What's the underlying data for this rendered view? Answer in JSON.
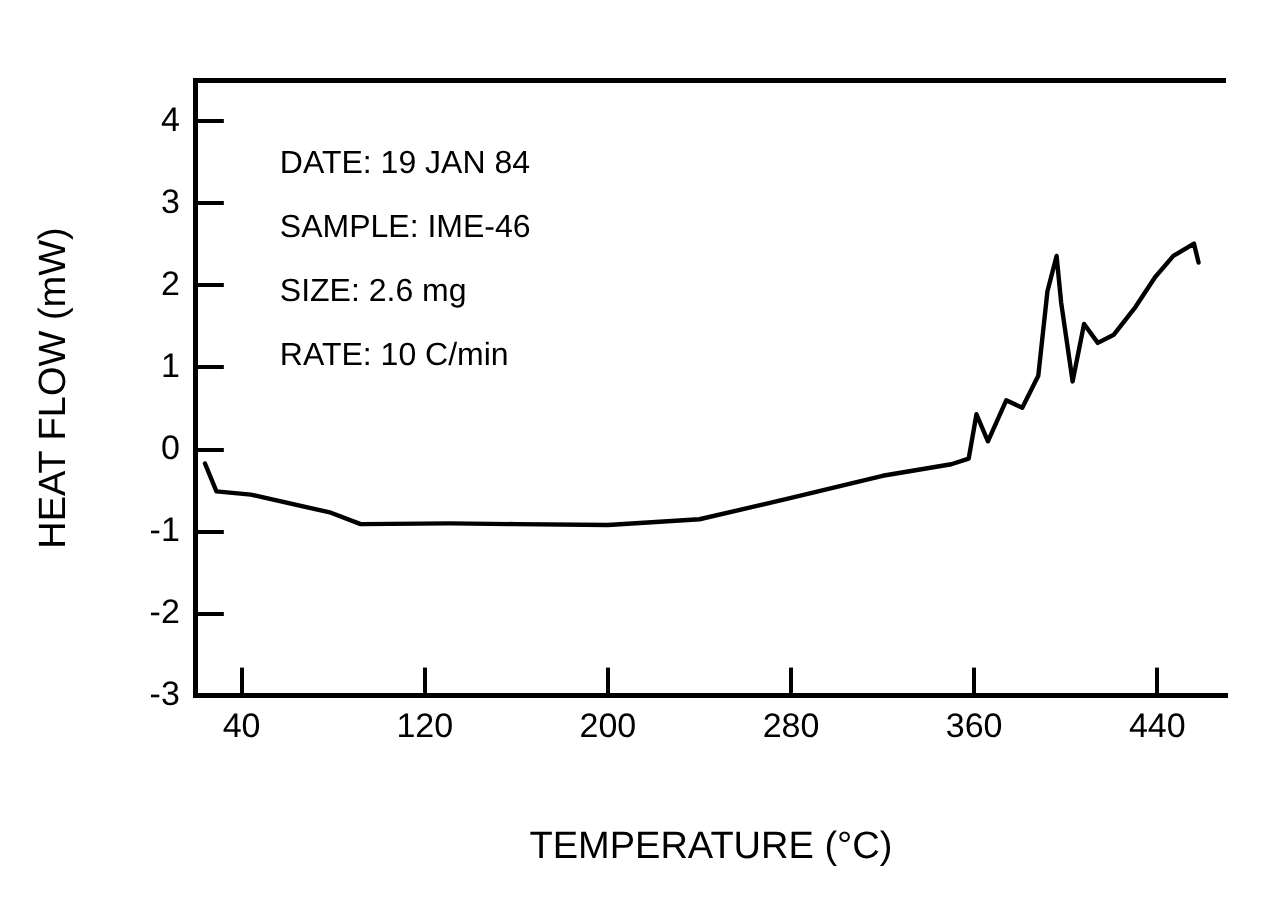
{
  "chart_data": {
    "type": "line",
    "xlabel": "TEMPERATURE (°C)",
    "ylabel": "HEAT FLOW (mW)",
    "annotations": [
      "DATE: 19 JAN 84",
      "SAMPLE: IME-46",
      "SIZE: 2.6 mg",
      "RATE: 10 C/min"
    ],
    "x": [
      24,
      29,
      44,
      79,
      92,
      131,
      160,
      200,
      240,
      280,
      320,
      350,
      357.6,
      361,
      366,
      374,
      381,
      388,
      392,
      396,
      398,
      403,
      408,
      414,
      421,
      430,
      439,
      447,
      456,
      458
    ],
    "series": [
      {
        "color": "#000000",
        "values": [
          -0.17,
          -0.51,
          -0.55,
          -0.77,
          -0.91,
          -0.9,
          -0.91,
          -0.92,
          -0.85,
          -0.59,
          -0.32,
          -0.18,
          -0.11,
          0.43,
          0.1,
          0.6,
          0.51,
          0.9,
          1.93,
          2.36,
          1.79,
          0.83,
          1.53,
          1.3,
          1.4,
          1.72,
          2.1,
          2.36,
          2.51,
          2.28
        ]
      }
    ],
    "xlim": [
      20,
      470
    ],
    "xticks": [
      40,
      120,
      200,
      280,
      360,
      440
    ],
    "ylim": [
      -3,
      4.5
    ],
    "yticks": [
      -3,
      -2,
      -1,
      0,
      1,
      2,
      3,
      4
    ],
    "grid": false,
    "legend": false,
    "marker": "none",
    "line_style": "solid"
  }
}
